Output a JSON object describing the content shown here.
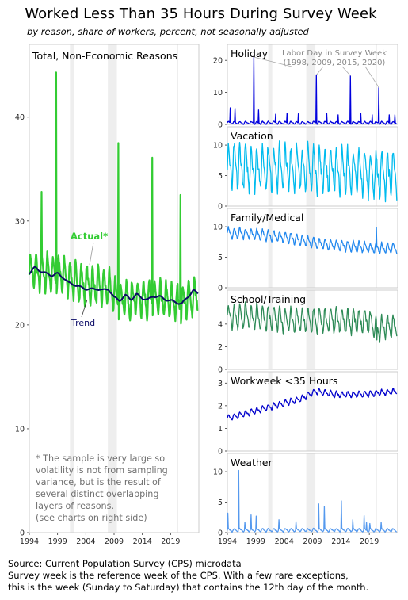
{
  "title": "Worked Less Than 35 Hours During Survey Week",
  "subtitle": "by reason, share of workers, percent, not seasonally adjusted",
  "footer": {
    "line1": "Source: Current Population Survey (CPS) microdata",
    "line2": "Survey week is the reference week of the CPS. With a few rare exceptions,",
    "line3": "this is the week (Sunday to Saturday) that contains the 12th day of the month."
  },
  "colors": {
    "actual": "#33cc33",
    "trend": "#0a0a66",
    "holiday": "#0000dd",
    "vacation": "#00bbee",
    "family": "#2288ee",
    "school": "#2e8b57",
    "workweek": "#0000cc",
    "weather": "#5599ee",
    "recession": "#eeeeee",
    "note": "#707070"
  },
  "recessions": [
    [
      2001.2,
      2001.9
    ],
    [
      2007.9,
      2009.5
    ],
    [
      2020.15,
      2020.35
    ]
  ],
  "chart_data": [
    {
      "type": "line",
      "panel": "main",
      "title": "Total, Non-Economic Reasons",
      "xlim": [
        1994,
        2024
      ],
      "ylim": [
        0,
        47
      ],
      "xticks": [
        1994,
        1999,
        2004,
        2009,
        2014,
        2019
      ],
      "xtick_labels": [
        "1994",
        "1999",
        "2004",
        "2009",
        "2014",
        "2019"
      ],
      "yticks": [
        0,
        10,
        20,
        30,
        40
      ],
      "ytick_labels": [
        "0",
        "10",
        "20",
        "30",
        "40"
      ],
      "series": [
        {
          "name": "Actual*",
          "key": "actual",
          "base": [
            [
              1994,
              25.2
            ],
            [
              1997,
              25.0
            ],
            [
              2000,
              24.8
            ],
            [
              2003,
              24.0
            ],
            [
              2006,
              23.7
            ],
            [
              2008,
              23.6
            ],
            [
              2010,
              22.3
            ],
            [
              2013,
              22.6
            ],
            [
              2016,
              22.5
            ],
            [
              2019,
              22.3
            ],
            [
              2021,
              22.1
            ],
            [
              2023.9,
              23.0
            ]
          ],
          "seasonal_amp": 1.6,
          "spikes": [
            [
              1998.75,
              44.3
            ],
            [
              2009.75,
              37.5
            ],
            [
              2015.75,
              36.1
            ],
            [
              2020.75,
              32.5
            ],
            [
              1996.15,
              32.8
            ]
          ]
        },
        {
          "name": "Trend",
          "key": "trend",
          "points": [
            [
              1994,
              25.0
            ],
            [
              1995,
              25.5
            ],
            [
              1996,
              25.2
            ],
            [
              1997,
              24.9
            ],
            [
              1998,
              24.8
            ],
            [
              1999,
              24.9
            ],
            [
              2000,
              24.6
            ],
            [
              2001,
              24.0
            ],
            [
              2002,
              23.9
            ],
            [
              2003,
              23.6
            ],
            [
              2004,
              23.5
            ],
            [
              2005,
              23.4
            ],
            [
              2006,
              23.5
            ],
            [
              2007,
              23.3
            ],
            [
              2008,
              23.5
            ],
            [
              2009,
              22.6
            ],
            [
              2010,
              22.4
            ],
            [
              2011,
              22.8
            ],
            [
              2012,
              22.5
            ],
            [
              2013,
              22.9
            ],
            [
              2014,
              22.6
            ],
            [
              2015,
              22.4
            ],
            [
              2016,
              22.8
            ],
            [
              2017,
              22.7
            ],
            [
              2018,
              22.5
            ],
            [
              2019,
              22.3
            ],
            [
              2020,
              22.2
            ],
            [
              2021,
              22.0
            ],
            [
              2022,
              22.7
            ],
            [
              2023,
              23.3
            ],
            [
              2023.9,
              23.0
            ]
          ]
        }
      ],
      "labels": {
        "actual": "Actual*",
        "trend": "Trend"
      },
      "note": [
        "* The sample is very large so",
        "volatility is not from sampling",
        "variance, but is the result of",
        "several distinct overlapping",
        "layers of reasons.",
        "(see charts on right side)"
      ]
    },
    {
      "type": "line",
      "panel": "holiday",
      "title": "Holiday",
      "xlim": [
        1994,
        2024
      ],
      "ylim": [
        0,
        25
      ],
      "yticks": [
        0,
        10,
        20
      ],
      "ytick_labels": [
        "0",
        "10",
        "20"
      ],
      "series": [
        {
          "name": "Holiday",
          "key": "holiday",
          "base": [
            [
              1994,
              0.5
            ],
            [
              2024,
              0.5
            ]
          ],
          "seasonal_amp": 0.4,
          "spikes": [
            [
              1998.7,
              21
            ],
            [
              2009.7,
              15.5
            ],
            [
              2015.7,
              15.2
            ],
            [
              2020.7,
              11.5
            ],
            [
              1994.5,
              5.2
            ],
            [
              1995.3,
              5.0
            ],
            [
              1999.5,
              4.5
            ],
            [
              2002.5,
              3.2
            ],
            [
              2004.5,
              3.5
            ],
            [
              2006.5,
              3.3
            ],
            [
              2011.5,
              3.5
            ],
            [
              2013.5,
              3.0
            ],
            [
              2017.5,
              3.5
            ],
            [
              2019.5,
              3.0
            ],
            [
              2022.5,
              3.0
            ],
            [
              2023.5,
              3.0
            ]
          ]
        }
      ],
      "annotation": {
        "lines": [
          "Labor Day in Survey Week",
          "(1998, 2009, 2015, 2020)"
        ],
        "targets": [
          [
            1998.7,
            21
          ],
          [
            2009.7,
            15.5
          ],
          [
            2015.7,
            15.2
          ],
          [
            2020.7,
            11.5
          ]
        ]
      }
    },
    {
      "type": "line",
      "panel": "vacation",
      "title": "Vacation",
      "xlim": [
        1994,
        2024
      ],
      "ylim": [
        0,
        13
      ],
      "yticks": [
        0,
        5,
        10
      ],
      "ytick_labels": [
        "0",
        "5",
        "10"
      ],
      "series": [
        {
          "name": "Vacation",
          "key": "vacation",
          "base": [
            [
              1994,
              6.5
            ],
            [
              2000,
              6.3
            ],
            [
              2008,
              6.2
            ],
            [
              2016,
              5.6
            ],
            [
              2021,
              5.2
            ],
            [
              2024,
              5.3
            ]
          ],
          "seasonal_amp": 3.4,
          "spikes": []
        }
      ]
    },
    {
      "type": "line",
      "panel": "family",
      "title": "Family/Medical",
      "xlim": [
        1994,
        2024
      ],
      "ylim": [
        0,
        13
      ],
      "yticks": [
        0,
        5,
        10
      ],
      "ytick_labels": [
        "0",
        "5",
        "10"
      ],
      "series": [
        {
          "name": "Family/Medical",
          "key": "family",
          "base": [
            [
              1994,
              9.0
            ],
            [
              2000,
              8.7
            ],
            [
              2006,
              8.0
            ],
            [
              2010,
              7.2
            ],
            [
              2016,
              6.8
            ],
            [
              2020,
              6.4
            ],
            [
              2024,
              6.6
            ]
          ],
          "seasonal_amp": 0.8,
          "spikes": [
            [
              2020.25,
              9.9
            ]
          ]
        }
      ]
    },
    {
      "type": "line",
      "panel": "school",
      "title": "School/Training",
      "xlim": [
        1994,
        2024
      ],
      "ylim": [
        0,
        7
      ],
      "yticks": [
        0,
        2,
        4
      ],
      "ytick_labels": [
        "0",
        "2",
        "4"
      ],
      "series": [
        {
          "name": "School/Training",
          "key": "school",
          "base": [
            [
              1994,
              4.7
            ],
            [
              2000,
              4.6
            ],
            [
              2006,
              4.3
            ],
            [
              2012,
              4.3
            ],
            [
              2019,
              4.2
            ],
            [
              2020.3,
              3.6
            ],
            [
              2024,
              3.9
            ]
          ],
          "seasonal_amp": 1.0,
          "spikes": [
            [
              2020.3,
              2.6
            ]
          ]
        }
      ]
    },
    {
      "type": "line",
      "panel": "workweek",
      "title": "Workweek <35 Hours",
      "xlim": [
        1994,
        2024
      ],
      "ylim": [
        0,
        3.5
      ],
      "yticks": [
        0,
        1,
        2,
        3
      ],
      "ytick_labels": [
        "0",
        "1",
        "2",
        "3"
      ],
      "series": [
        {
          "name": "Workweek <35 Hours",
          "key": "workweek",
          "base": [
            [
              1994,
              1.45
            ],
            [
              1998,
              1.7
            ],
            [
              2003,
              2.05
            ],
            [
              2007,
              2.3
            ],
            [
              2009.5,
              2.65
            ],
            [
              2013,
              2.5
            ],
            [
              2018,
              2.5
            ],
            [
              2024,
              2.65
            ]
          ],
          "seasonal_amp": 0.12,
          "spikes": []
        }
      ]
    },
    {
      "type": "line",
      "panel": "weather",
      "title": "Weather",
      "xlim": [
        1994,
        2024
      ],
      "ylim": [
        0,
        13
      ],
      "yticks": [
        0,
        5,
        10
      ],
      "ytick_labels": [
        "0",
        "5",
        "10"
      ],
      "series": [
        {
          "name": "Weather",
          "key": "weather",
          "base": [
            [
              1994,
              0.4
            ],
            [
              2024,
              0.4
            ]
          ],
          "seasonal_amp": 0.25,
          "spikes": [
            [
              1996.0,
              10.2
            ],
            [
              1994.1,
              3.2
            ],
            [
              1997.1,
              1.7
            ],
            [
              1998.2,
              2.9
            ],
            [
              1999.1,
              2.7
            ],
            [
              2003.1,
              2.1
            ],
            [
              2006.1,
              1.8
            ],
            [
              2010.1,
              4.7
            ],
            [
              2011.1,
              4.3
            ],
            [
              2014.1,
              5.2
            ],
            [
              2016.1,
              2.1
            ],
            [
              2018.1,
              2.8
            ],
            [
              2018.5,
              1.7
            ],
            [
              2019.1,
              1.5
            ],
            [
              2021.1,
              1.7
            ]
          ]
        }
      ]
    }
  ]
}
